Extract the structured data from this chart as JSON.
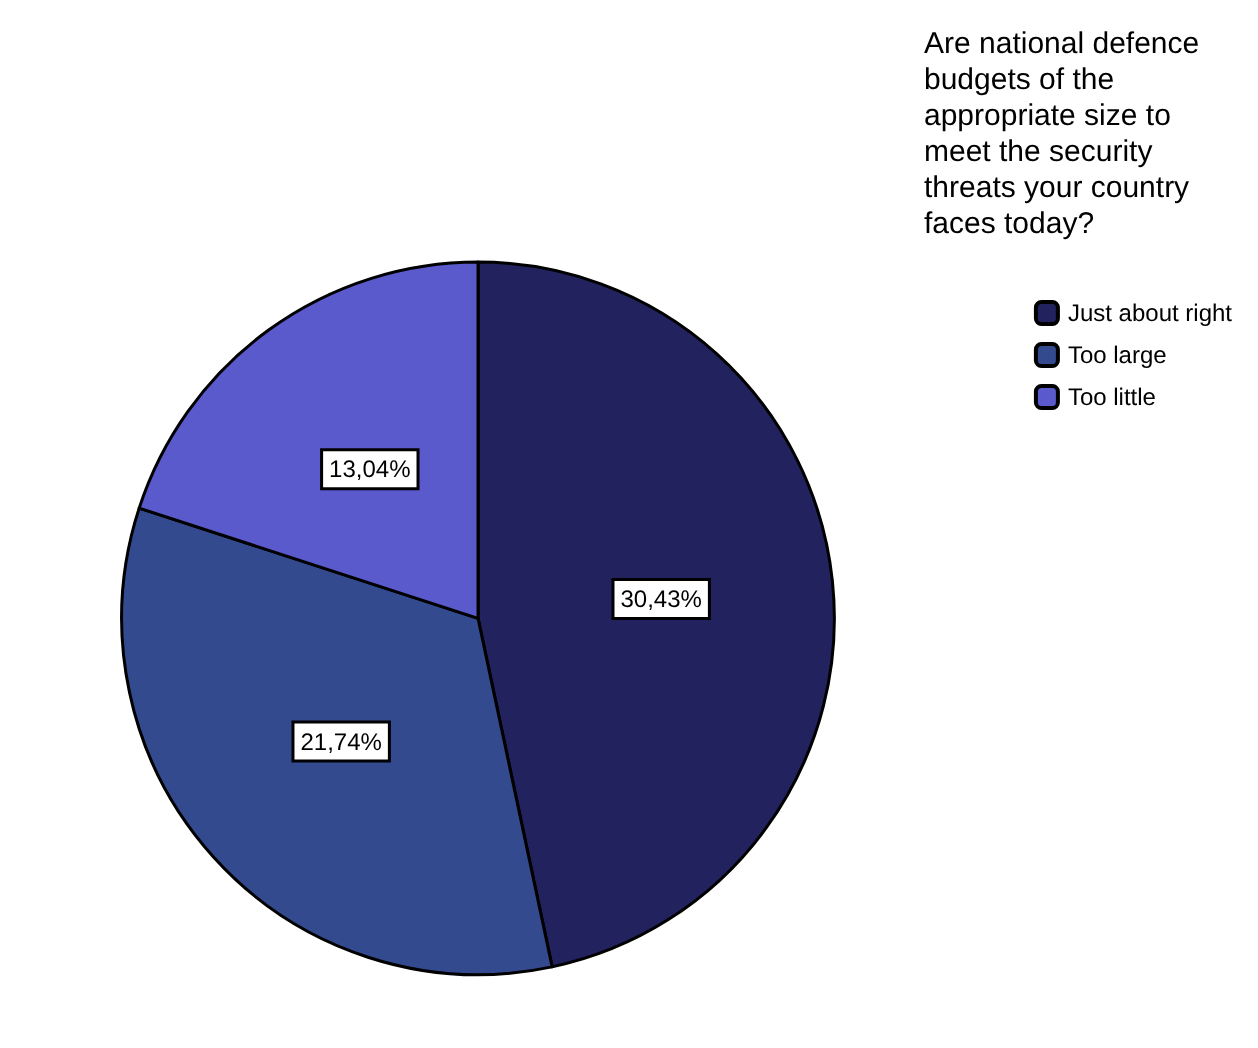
{
  "chart_data": {
    "type": "pie",
    "legend_title": "Are national defence budgets of the appropriate size to meet the security threats your country faces today?",
    "categories": [
      "Just about right",
      "Too large",
      "Too little"
    ],
    "values": [
      30.43,
      21.74,
      13.04
    ],
    "value_labels": [
      "30,43%",
      "21,74%",
      "13,04%"
    ],
    "colors": [
      "#22225f",
      "#344a8e",
      "#5a5acc"
    ],
    "legend": "top right"
  }
}
